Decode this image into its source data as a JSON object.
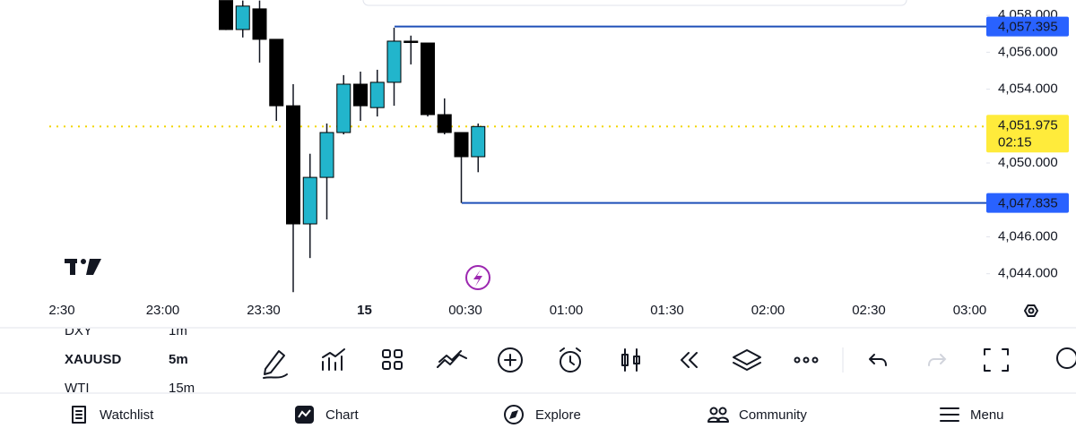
{
  "chart": {
    "symbol_list": [
      {
        "symbol": "DXY",
        "interval": "1m"
      },
      {
        "symbol": "XAUUSD",
        "interval": "5m"
      },
      {
        "symbol": "WTI",
        "interval": "15m"
      }
    ],
    "price_axis": {
      "ylim": [
        4042.82,
        4058.83
      ],
      "ticks": [
        {
          "value": 4058,
          "label": "4,058.000"
        },
        {
          "value": 4056,
          "label": "4,056.000"
        },
        {
          "value": 4054,
          "label": "4,054.000"
        },
        {
          "value": 4050,
          "label": "4,050.000"
        },
        {
          "value": 4046,
          "label": "4,046.000"
        },
        {
          "value": 4044,
          "label": "4,044.000"
        }
      ]
    },
    "time_labels": [
      "2:30",
      "23:00",
      "23:30",
      "15",
      "00:30",
      "01:00",
      "01:30",
      "02:00",
      "02:30",
      "03:00"
    ],
    "candles": [
      {
        "open": 4058.8,
        "high": 4058.8,
        "low": 4057.2,
        "close": 4057.23
      },
      {
        "open": 4057.23,
        "high": 4058.8,
        "low": 4056.8,
        "close": 4058.5
      },
      {
        "open": 4058.35,
        "high": 4058.8,
        "low": 4055.44,
        "close": 4056.7
      },
      {
        "open": 4056.7,
        "high": 4056.7,
        "low": 4052.28,
        "close": 4053.1
      },
      {
        "open": 4053.1,
        "high": 4054.27,
        "low": 4043.0,
        "close": 4046.7
      },
      {
        "open": 4046.7,
        "high": 4050.5,
        "low": 4044.85,
        "close": 4049.22
      },
      {
        "open": 4049.22,
        "high": 4052.14,
        "low": 4046.94,
        "close": 4051.65
      },
      {
        "open": 4051.65,
        "high": 4054.76,
        "low": 4051.55,
        "close": 4054.27
      },
      {
        "open": 4054.27,
        "high": 4054.95,
        "low": 4052.28,
        "close": 4053.1
      },
      {
        "open": 4053.0,
        "high": 4055.05,
        "low": 4052.52,
        "close": 4054.37
      },
      {
        "open": 4054.37,
        "high": 4057.33,
        "low": 4053.1,
        "close": 4056.6
      },
      {
        "open": 4056.6,
        "high": 4056.9,
        "low": 4055.34,
        "close": 4056.6
      },
      {
        "open": 4056.5,
        "high": 4056.5,
        "low": 4052.52,
        "close": 4052.62
      },
      {
        "open": 4052.62,
        "high": 4053.5,
        "low": 4051.55,
        "close": 4051.65
      },
      {
        "open": 4051.65,
        "high": 4051.65,
        "low": 4047.835,
        "close": 4050.34
      },
      {
        "open": 4050.34,
        "high": 4052.14,
        "low": 4049.5,
        "close": 4051.975
      }
    ],
    "levels": [
      {
        "value": 4057.395,
        "label": "4,057.395"
      },
      {
        "value": 4047.835,
        "label": "4,047.835"
      }
    ],
    "last_price": {
      "value": 4051.975,
      "label": "4,051.975",
      "countdown": "02:15"
    }
  },
  "nav": [
    "Watchlist",
    "Chart",
    "Explore",
    "Community",
    "Menu"
  ]
}
